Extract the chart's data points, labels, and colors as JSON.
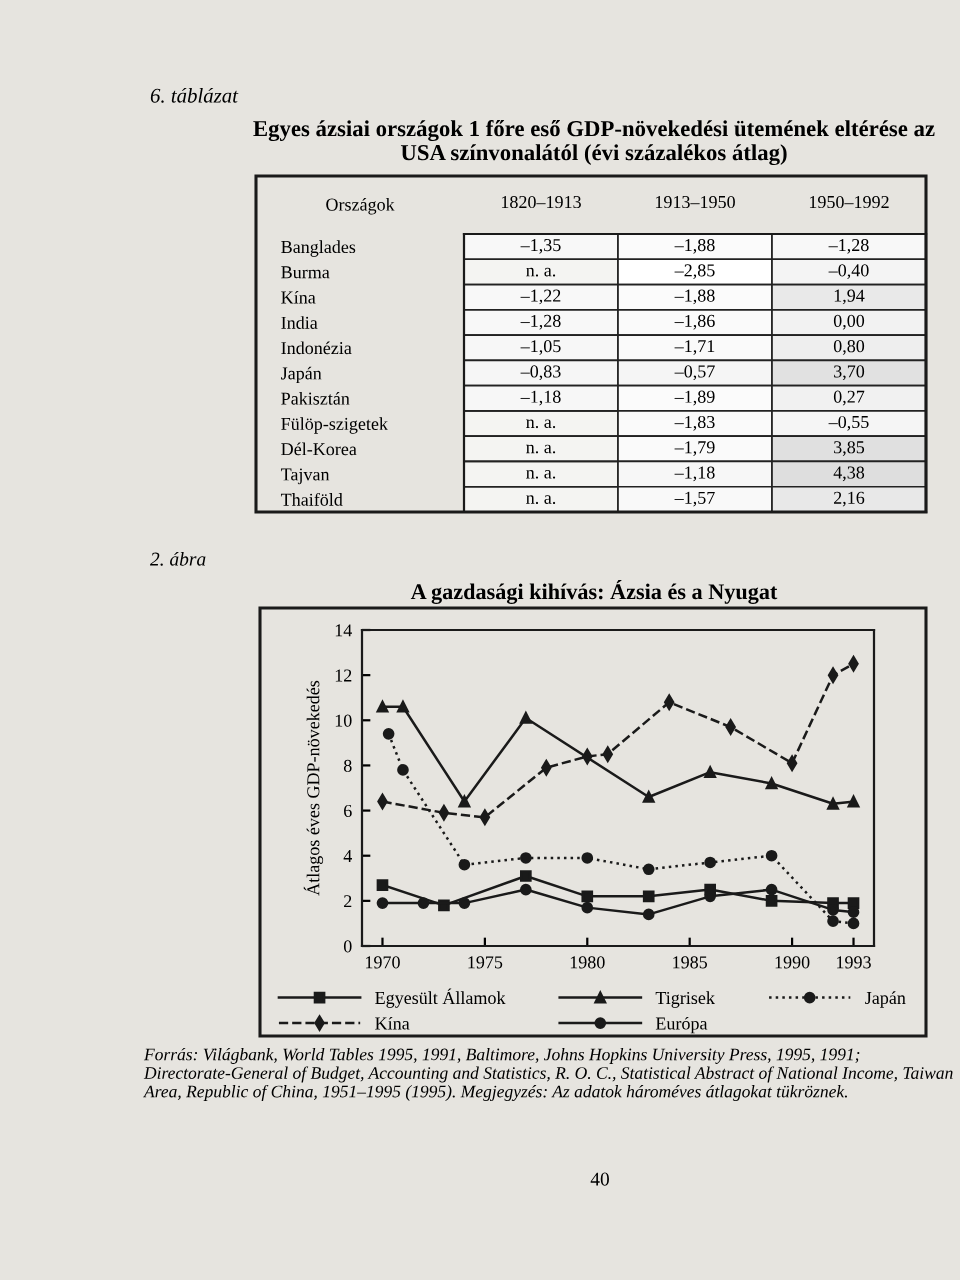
{
  "chart_data": [
    {
      "type": "heatmap",
      "title": "Egyes ázsiai országok 1 főre eső GDP-növekedési ütemének eltérése az USA színvonalától (évi százalékos átlag)",
      "ylabel": "Országok",
      "annotations": [
        "6. táblázat"
      ],
      "categories": [
        "1820–1913",
        "1913–1950",
        "1950–1992"
      ],
      "y_categories": [
        "Banglades",
        "Burma",
        "Kína",
        "India",
        "Indonézia",
        "Japán",
        "Pakisztán",
        "Fülöp-szigetek",
        "Dél-Korea",
        "Tajvan",
        "Thaiföld"
      ],
      "cells": [
        [
          -1.35,
          -1.88,
          -1.28
        ],
        [
          null,
          -2.85,
          -0.4
        ],
        [
          -1.22,
          -1.88,
          1.94
        ],
        [
          -1.28,
          -1.86,
          0.0
        ],
        [
          -1.05,
          -1.71,
          0.8
        ],
        [
          -0.83,
          -0.57,
          3.7
        ],
        [
          -1.18,
          -1.89,
          0.27
        ],
        [
          null,
          -1.83,
          -0.55
        ],
        [
          null,
          -1.79,
          3.85
        ],
        [
          null,
          -1.18,
          4.38
        ],
        [
          null,
          -1.57,
          2.16
        ]
      ],
      "cell_labels": [
        [
          "–1,35",
          "–1,88",
          "–1,28"
        ],
        [
          "n. a.",
          "–2,85",
          "–0,40"
        ],
        [
          "–1,22",
          "–1,88",
          "1,94"
        ],
        [
          "–1,28",
          "–1,86",
          "0,00"
        ],
        [
          "–1,05",
          "–1,71",
          "0,80"
        ],
        [
          "–0,83",
          "–0,57",
          "3,70"
        ],
        [
          "–1,18",
          "–1,89",
          "0,27"
        ],
        [
          "n. a.",
          "–1,83",
          "–0,55"
        ],
        [
          "n. a.",
          "–1,79",
          "3,85"
        ],
        [
          "n. a.",
          "–1,18",
          "4,38"
        ],
        [
          "n. a.",
          "–1,57",
          "2,16"
        ]
      ]
    },
    {
      "type": "line",
      "title": "A gazdasági kihívás: Ázsia és a Nyugat",
      "ylabel": "Átlagos éves GDP-növekedés",
      "xlim": [
        1969,
        1994
      ],
      "xticks": [
        1970,
        1975,
        1980,
        1985,
        1990,
        1993
      ],
      "ylim": [
        0,
        14
      ],
      "yticks": [
        0,
        2,
        4,
        6,
        8,
        10,
        12,
        14
      ],
      "legend": "bottom",
      "annotations": [
        "2. ábra",
        "Forrás: Világbank, World Tables 1995, 1991, Baltimore, Johns Hopkins University Press, 1995, 1991; Directorate-General of Budget, Accounting and Statistics, R. O. C., Statistical Abstract of National Income, Taiwan Area, Republic of China, 1951–1995 (1995). Megjegyzés: Az adatok hároméves átlagokat tükröznek.",
        "40"
      ],
      "series": [
        {
          "name": "Egyesült Államok",
          "color": "#1a1a1a",
          "marker": "square",
          "line_style": "solid",
          "x": [
            1970,
            1973,
            1977,
            1980,
            1983,
            1986,
            1989,
            1992,
            1993
          ],
          "values": [
            2.7,
            1.8,
            3.1,
            2.2,
            2.2,
            2.5,
            2.0,
            1.9,
            1.9
          ]
        },
        {
          "name": "Kína",
          "color": "#1a1a1a",
          "marker": "diamond",
          "line_style": "dashed",
          "x": [
            1970,
            1973,
            1975,
            1978,
            1980,
            1981,
            1984,
            1987,
            1990,
            1992,
            1993
          ],
          "values": [
            6.4,
            5.9,
            5.7,
            7.9,
            8.4,
            8.5,
            10.8,
            9.7,
            8.1,
            12.0,
            12.5
          ]
        },
        {
          "name": "Tigrisek",
          "color": "#1a1a1a",
          "marker": "triangle",
          "line_style": "solid",
          "x": [
            1970,
            1971,
            1974,
            1977,
            1983,
            1986,
            1989,
            1992,
            1993
          ],
          "values": [
            10.6,
            10.6,
            6.4,
            10.1,
            6.6,
            7.7,
            7.2,
            6.3,
            6.4
          ]
        },
        {
          "name": "Európa",
          "color": "#1a1a1a",
          "marker": "circle",
          "line_style": "solid",
          "x": [
            1970,
            1972,
            1974,
            1977,
            1980,
            1983,
            1986,
            1989,
            1992,
            1993
          ],
          "values": [
            1.9,
            1.9,
            1.9,
            2.5,
            1.7,
            1.4,
            2.2,
            2.5,
            1.6,
            1.5
          ]
        },
        {
          "name": "Japán",
          "color": "#1a1a1a",
          "marker": "circle",
          "line_style": "dotted",
          "x": [
            1970.3,
            1971,
            1974,
            1977,
            1980,
            1983,
            1986,
            1989,
            1992,
            1993
          ],
          "values": [
            9.4,
            7.8,
            3.6,
            3.9,
            3.9,
            3.4,
            3.7,
            4.0,
            1.1,
            1.0
          ]
        }
      ]
    }
  ]
}
